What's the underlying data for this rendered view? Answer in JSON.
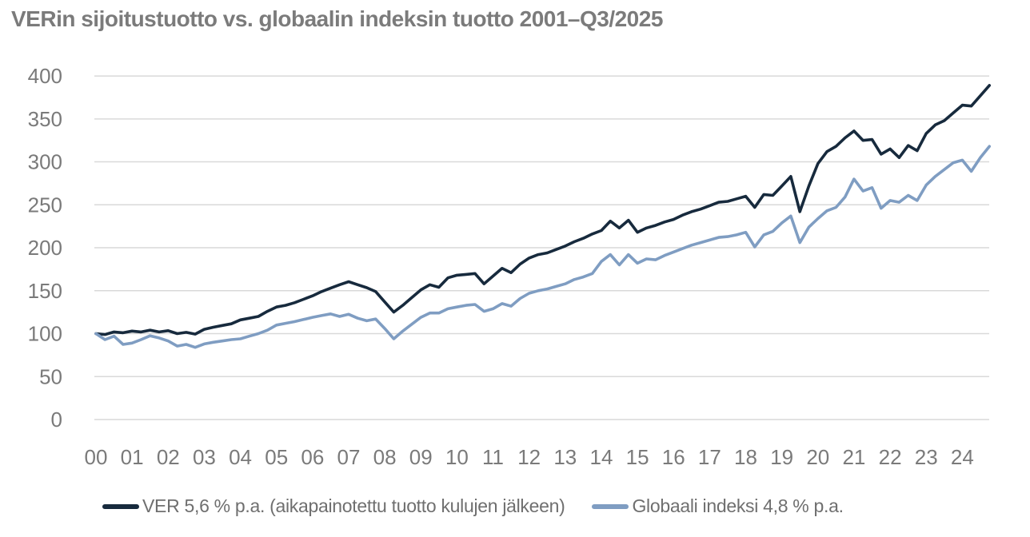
{
  "title": "VERin sijoitustuotto vs. globaalin indeksin tuotto 2001–Q3/2025",
  "colors": {
    "ver_line": "#172a3d",
    "global_line": "#7f9dc2",
    "text_gray": "#7a7a7a",
    "gridline": "#d9d9d9",
    "background": "#ffffff"
  },
  "legend": {
    "ver_label": "VER 5,6 % p.a. (aikapainotettu tuotto kulujen jälkeen)",
    "global_label": "Globaali indeksi 4,8 % p.a."
  },
  "chart_data": {
    "type": "line",
    "title": "VERin sijoitustuotto vs. globaalin indeksin tuotto 2001–Q3/2025",
    "xlabel": "",
    "ylabel": "",
    "ylim": [
      0,
      400
    ],
    "y_ticks": [
      0,
      50,
      100,
      150,
      200,
      250,
      300,
      350,
      400
    ],
    "x_tick_labels": [
      "00",
      "01",
      "02",
      "03",
      "04",
      "05",
      "06",
      "07",
      "08",
      "09",
      "10",
      "11",
      "12",
      "13",
      "14",
      "15",
      "16",
      "17",
      "18",
      "19",
      "20",
      "21",
      "22",
      "23",
      "24"
    ],
    "x_start": 0,
    "x_step_years": 0.25,
    "index_base": 100,
    "grid": true,
    "legend_position": "bottom",
    "series": [
      {
        "name": "VER",
        "legend_label": "VER 5,6 % p.a. (aikapainotettu tuotto kulujen jälkeen)",
        "annual_return_pct": "5,6",
        "color": "#172a3d",
        "values": [
          100,
          99,
          102,
          101,
          103,
          102,
          104,
          102,
          103.5,
          100,
          101.5,
          99.5,
          105,
          107.5,
          109.5,
          111.5,
          116,
          118,
          120,
          126,
          131,
          133,
          136,
          140,
          144,
          149,
          153,
          157,
          160.5,
          157,
          153.5,
          149,
          137,
          125,
          133,
          142,
          151,
          157,
          154,
          165,
          168,
          169,
          170,
          158,
          167,
          176,
          171,
          181,
          188,
          192,
          194,
          198,
          202,
          207,
          211,
          216,
          220,
          231,
          223,
          232,
          218,
          223,
          226,
          230,
          233,
          238,
          242,
          245,
          249,
          253,
          254,
          257,
          260,
          247,
          262,
          261,
          272,
          283,
          242,
          272,
          298,
          312,
          318,
          328,
          336,
          325,
          326,
          309,
          315,
          305,
          319,
          313,
          333,
          343,
          348,
          357,
          366,
          365,
          377,
          389
        ]
      },
      {
        "name": "Globaali indeksi",
        "legend_label": "Globaali indeksi 4,8 % p.a.",
        "annual_return_pct": "4,8",
        "color": "#7f9dc2",
        "values": [
          100,
          93,
          97,
          87.5,
          89,
          93,
          97.5,
          95,
          91.5,
          85.5,
          87.5,
          84,
          88,
          90,
          91.5,
          93,
          94,
          97,
          100,
          104,
          110,
          112,
          114,
          116.5,
          119,
          121,
          123,
          120,
          122.5,
          118,
          115,
          117,
          106,
          94,
          103,
          111,
          119,
          124,
          124,
          129,
          131,
          133,
          134,
          126,
          129,
          135,
          132,
          141,
          147,
          150,
          152,
          155,
          158,
          163,
          166,
          170,
          184,
          192,
          180,
          192,
          182,
          187,
          186,
          191,
          195,
          199,
          203,
          206,
          209,
          212,
          213,
          215,
          218,
          201,
          215,
          219,
          229,
          237,
          206,
          224,
          234,
          243,
          247,
          259,
          280,
          266,
          270,
          246,
          255,
          253,
          261,
          255,
          273,
          283,
          291,
          299,
          302,
          289,
          305,
          318
        ]
      }
    ]
  }
}
